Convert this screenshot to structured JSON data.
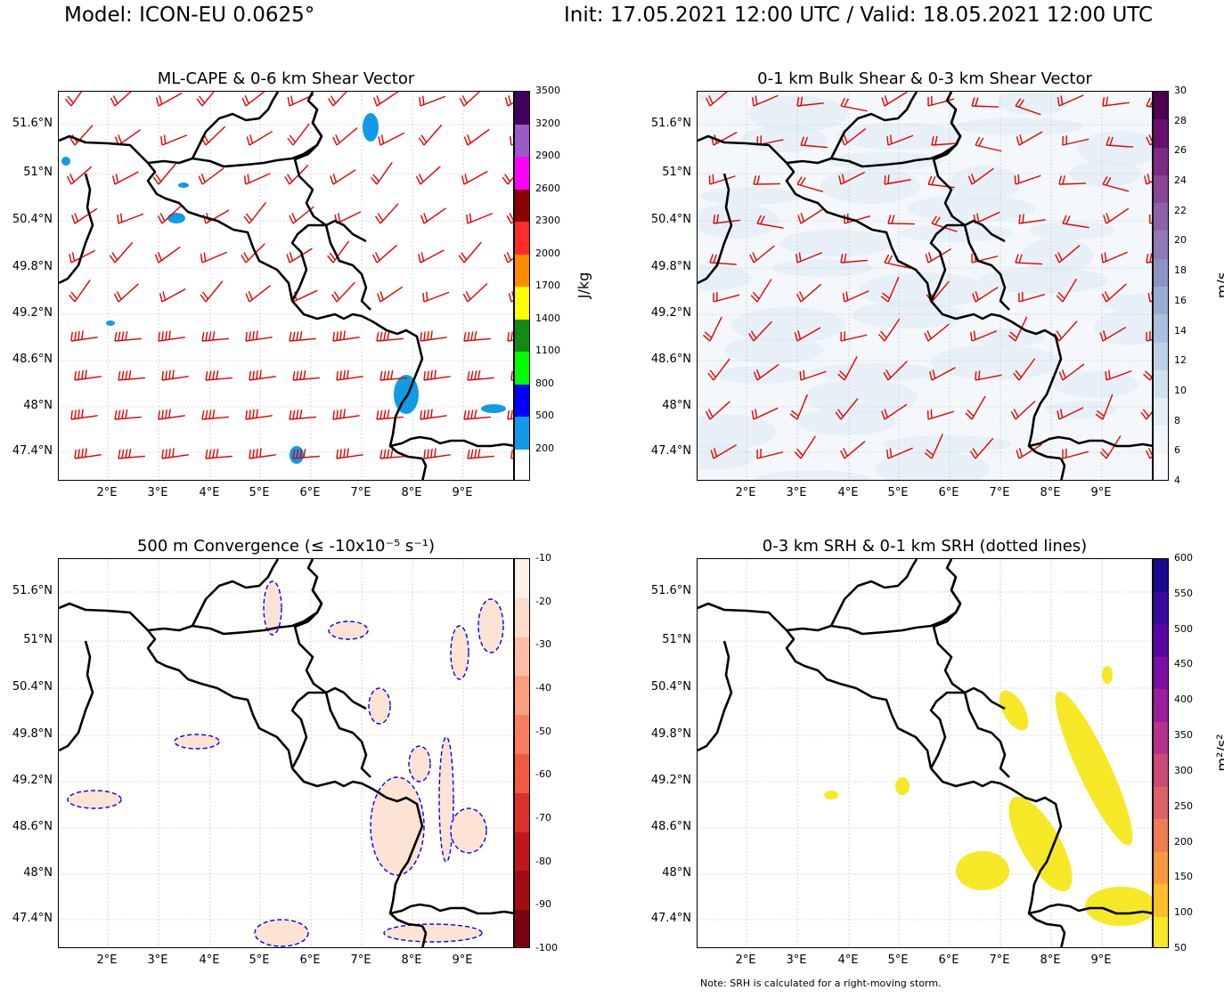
{
  "header": {
    "model": "Model: ICON-EU 0.0625°",
    "time": "Init: 17.05.2021 12:00 UTC / Valid: 18.05.2021 12:00 UTC"
  },
  "axes": {
    "lat_labels": [
      "51.6°N",
      "51°N",
      "50.4°N",
      "49.8°N",
      "49.2°N",
      "48.6°N",
      "48°N",
      "47.4°N"
    ],
    "lon_labels": [
      "2°E",
      "3°E",
      "4°E",
      "5°E",
      "6°E",
      "7°E",
      "8°E",
      "9°E"
    ]
  },
  "panels": [
    {
      "title": "ML-CAPE & 0-6 km Shear Vector",
      "unit": "J/kg",
      "ticks": [
        "3500",
        "3200",
        "2900",
        "2600",
        "2300",
        "2000",
        "1700",
        "1400",
        "1100",
        "800",
        "500",
        "200"
      ],
      "colors": [
        "#400060",
        "#9a5bc8",
        "#ff00ff",
        "#8b0000",
        "#ff2a2a",
        "#ff8c00",
        "#ffff00",
        "#138a13",
        "#00ff00",
        "#0000ff",
        "#109be6",
        "#ffffff"
      ]
    },
    {
      "title": "0-1 km Bulk Shear & 0-3 km Shear Vector",
      "unit": "m/s",
      "ticks": [
        "30",
        "28",
        "26",
        "24",
        "22",
        "20",
        "18",
        "16",
        "14",
        "12",
        "10",
        "8",
        "6",
        "4"
      ],
      "colors": [
        "#4d0050",
        "#6a0f70",
        "#7f2987",
        "#8a4799",
        "#8e62a8",
        "#8f7ab5",
        "#8c93c6",
        "#9aacd3",
        "#a9c1de",
        "#bdd2e6",
        "#d2e1ee",
        "#e3edf5",
        "#f1f6fa",
        "#f8fbfd"
      ]
    },
    {
      "title": "500 m Convergence (≤ -10x10⁻⁵ s⁻¹)",
      "unit": "",
      "ticks": [
        "-10",
        "-20",
        "-30",
        "-40",
        "-50",
        "-60",
        "-70",
        "-80",
        "-90",
        "-100"
      ],
      "colors": [
        "#fff0e8",
        "#fddcc9",
        "#fcbfa5",
        "#fb9f80",
        "#f87d5e",
        "#f15a41",
        "#dd3028",
        "#c2151c",
        "#a20d15",
        "#7b0410"
      ],
      "contour_label": "-10"
    },
    {
      "title": "0-3 km SRH & 0-1 km SRH (dotted lines)",
      "unit": "m²/s²",
      "ticks": [
        "600",
        "550",
        "500",
        "450",
        "400",
        "350",
        "300",
        "250",
        "200",
        "150",
        "100",
        "50"
      ],
      "colors": [
        "#1a0a90",
        "#3a0a9e",
        "#5c06a6",
        "#7d0fa6",
        "#9b1f9c",
        "#b5338a",
        "#cb4a77",
        "#de6265",
        "#ed7c52",
        "#f89b3f",
        "#fdbe2b",
        "#f6e826"
      ]
    }
  ],
  "note": "Note: SRH is calculated for a right-moving storm."
}
